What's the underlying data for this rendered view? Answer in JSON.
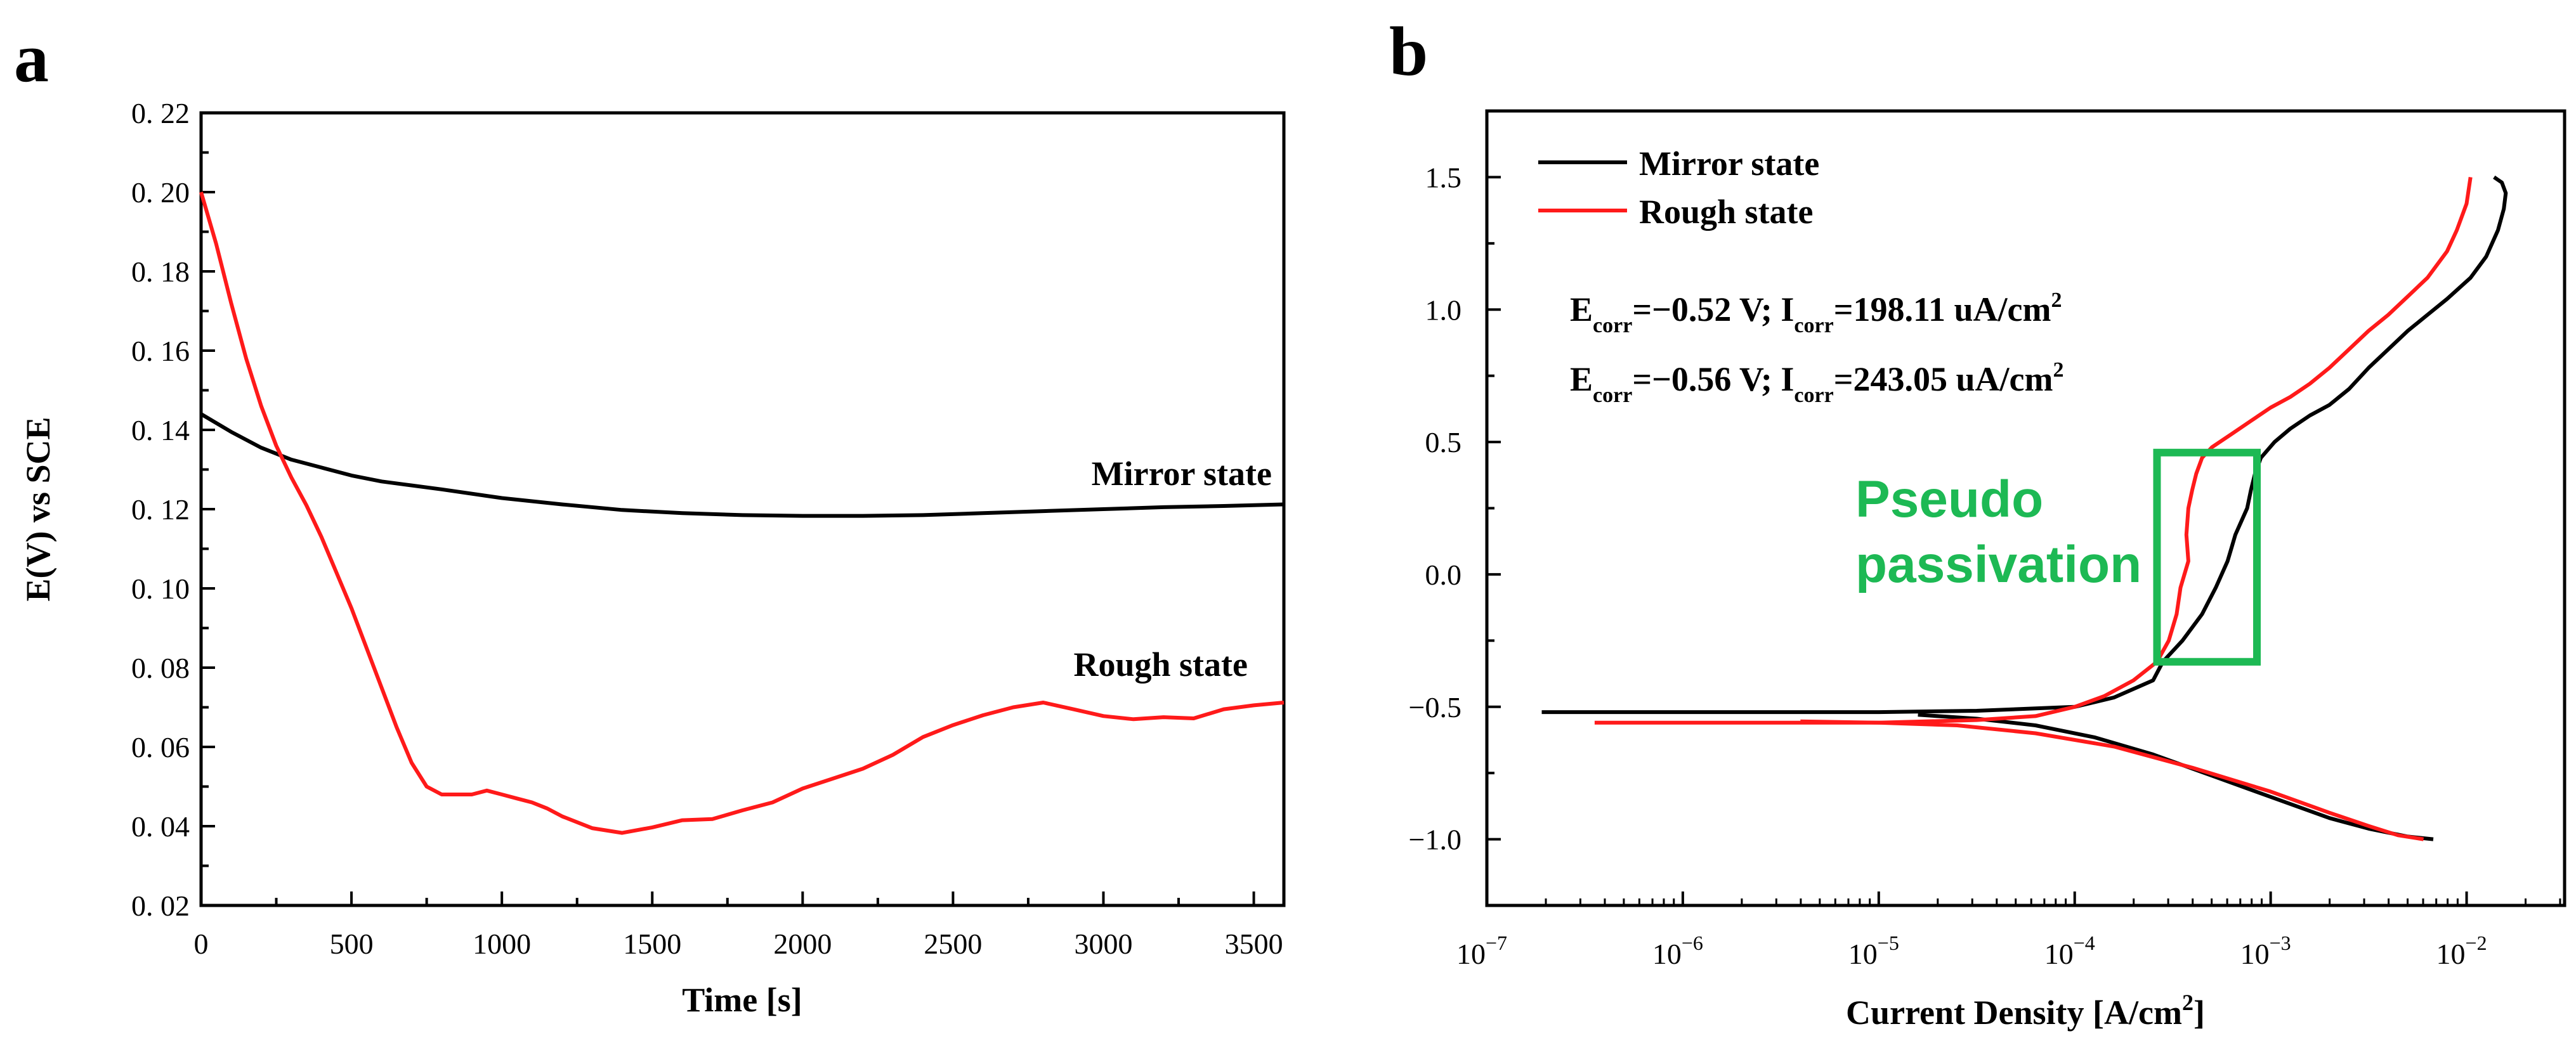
{
  "colors": {
    "mirror": "#000000",
    "rough": "#ff1a1a",
    "highlight": "#1db954"
  },
  "chart_data": [
    {
      "panel": "a",
      "type": "line",
      "title": "",
      "xlabel": "Time [s]",
      "ylabel": "E(V) vs SCE",
      "xlim": [
        0,
        3600
      ],
      "ylim": [
        0.02,
        0.22
      ],
      "xticks": [
        0,
        500,
        1000,
        1500,
        2000,
        2500,
        3000,
        3500
      ],
      "xtick_labels": [
        "0",
        "500",
        "1000",
        "1500",
        "2000",
        "2500",
        "3000",
        "3500"
      ],
      "yticks": [
        0.02,
        0.04,
        0.06,
        0.08,
        0.1,
        0.12,
        0.14,
        0.16,
        0.18,
        0.2,
        0.22
      ],
      "ytick_labels": [
        "0. 02",
        "0. 04",
        "0. 06",
        "0. 08",
        "0. 10",
        "0. 12",
        "0. 14",
        "0. 16",
        "0. 18",
        "0. 20",
        "0. 22"
      ],
      "series": [
        {
          "name": "Mirror state",
          "label": "Mirror state",
          "color": "#000000",
          "x": [
            0,
            100,
            200,
            300,
            400,
            500,
            600,
            800,
            1000,
            1200,
            1400,
            1600,
            1800,
            2000,
            2200,
            2400,
            2600,
            2800,
            3000,
            3200,
            3400,
            3600
          ],
          "y": [
            0.144,
            0.1395,
            0.1355,
            0.1325,
            0.1305,
            0.1285,
            0.127,
            0.125,
            0.1228,
            0.1212,
            0.1198,
            0.119,
            0.1185,
            0.1183,
            0.1183,
            0.1185,
            0.119,
            0.1195,
            0.12,
            0.1205,
            0.1208,
            0.1212
          ]
        },
        {
          "name": "Rough state",
          "label": "Rough state",
          "color": "#ff1a1a",
          "x": [
            0,
            50,
            100,
            150,
            200,
            250,
            300,
            350,
            400,
            450,
            500,
            550,
            600,
            650,
            700,
            750,
            800,
            850,
            900,
            950,
            1000,
            1050,
            1100,
            1150,
            1200,
            1300,
            1400,
            1500,
            1600,
            1700,
            1800,
            1900,
            2000,
            2100,
            2200,
            2300,
            2400,
            2500,
            2600,
            2700,
            2800,
            2900,
            3000,
            3100,
            3200,
            3300,
            3400,
            3500,
            3600
          ],
          "y": [
            0.2,
            0.187,
            0.172,
            0.158,
            0.146,
            0.136,
            0.128,
            0.121,
            0.113,
            0.104,
            0.095,
            0.085,
            0.075,
            0.065,
            0.056,
            0.05,
            0.048,
            0.048,
            0.048,
            0.049,
            0.048,
            0.047,
            0.046,
            0.0445,
            0.0425,
            0.0395,
            0.0383,
            0.0397,
            0.0415,
            0.0418,
            0.044,
            0.046,
            0.0495,
            0.052,
            0.0545,
            0.058,
            0.0625,
            0.0655,
            0.068,
            0.07,
            0.0712,
            0.0695,
            0.0678,
            0.067,
            0.0675,
            0.0672,
            0.0695,
            0.0705,
            0.0712
          ]
        }
      ]
    },
    {
      "panel": "b",
      "type": "line",
      "title": "",
      "xlabel_pre": "Current Density [A/cm",
      "xlabel_sup": "2",
      "xlabel_post": "]",
      "ylabel": "",
      "xscale": "log",
      "xlim_log10": [
        -7,
        -1.5
      ],
      "ylim": [
        -1.25,
        1.75
      ],
      "xtick_base": "10",
      "xtick_exponents": [
        "-7",
        "-6",
        "-5",
        "-4",
        "-3",
        "-2"
      ],
      "yticks": [
        -1.0,
        -0.5,
        0.0,
        0.5,
        1.0,
        1.5
      ],
      "ytick_labels": [
        "−1.0",
        "−0.5",
        "0.0",
        "0.5",
        "1.0",
        "1.5"
      ],
      "legend": {
        "position": "top-left",
        "entries": [
          "Mirror state",
          "Rough state"
        ]
      },
      "annotations": {
        "mirror": {
          "e_label": "E",
          "e_sub": "corr",
          "e_val": "=−0.52 V; I",
          "i_sub": "corr",
          "i_val": "=198.11 uA/cm",
          "i_sup": "2"
        },
        "rough": {
          "e_label": "E",
          "e_sub": "corr",
          "e_val": "=−0.56 V; I",
          "i_sub": "corr",
          "i_val": "=243.05 uA/cm",
          "i_sup": "2"
        },
        "highlight_line1": "Pseudo",
        "highlight_line2": "passivation",
        "highlight_box": {
          "x_log10": [
            -3.58,
            -3.07
          ],
          "y": [
            -0.33,
            0.46
          ]
        }
      },
      "series": [
        {
          "name": "Mirror state",
          "color": "#000000",
          "branches": [
            {
              "log10_i": [
                -6.72,
                -6,
                -5,
                -4.5,
                -4,
                -3.8,
                -3.6,
                -3.55,
                -3.45,
                -3.35,
                -3.28,
                -3.22,
                -3.2,
                -3.18,
                -3.15,
                -3.12,
                -3.1,
                -3.08,
                -3.05,
                -2.98,
                -2.9,
                -2.8,
                -2.7,
                -2.6,
                -2.5,
                -2.4,
                -2.3,
                -2.2,
                -2.1,
                -1.98,
                -1.9,
                -1.84,
                -1.81,
                -1.8,
                -1.82,
                -1.86
              ],
              "e": [
                -0.52,
                -0.52,
                -0.52,
                -0.515,
                -0.5,
                -0.465,
                -0.4,
                -0.33,
                -0.25,
                -0.15,
                -0.05,
                0.05,
                0.1,
                0.15,
                0.2,
                0.25,
                0.32,
                0.38,
                0.44,
                0.5,
                0.55,
                0.6,
                0.64,
                0.7,
                0.78,
                0.85,
                0.92,
                0.98,
                1.04,
                1.12,
                1.2,
                1.3,
                1.38,
                1.44,
                1.48,
                1.5
              ]
            },
            {
              "log10_i": [
                -4.8,
                -4.5,
                -4.2,
                -3.9,
                -3.6,
                -3.3,
                -3.0,
                -2.7,
                -2.5,
                -2.3,
                -2.17
              ],
              "e": [
                -0.53,
                -0.545,
                -0.57,
                -0.615,
                -0.68,
                -0.76,
                -0.84,
                -0.92,
                -0.96,
                -0.99,
                -1.0
              ]
            }
          ]
        },
        {
          "name": "Rough state",
          "color": "#ff1a1a",
          "branches": [
            {
              "log10_i": [
                -6.45,
                -6,
                -5,
                -4.5,
                -4.2,
                -4,
                -3.85,
                -3.7,
                -3.58,
                -3.52,
                -3.48,
                -3.46,
                -3.44,
                -3.42,
                -3.43,
                -3.42,
                -3.4,
                -3.38,
                -3.35,
                -3.3,
                -3.2,
                -3.1,
                -3.0,
                -2.9,
                -2.8,
                -2.7,
                -2.6,
                -2.5,
                -2.4,
                -2.3,
                -2.2,
                -2.1,
                -2.05,
                -2.0,
                -1.98
              ],
              "e": [
                -0.56,
                -0.56,
                -0.56,
                -0.55,
                -0.535,
                -0.5,
                -0.46,
                -0.4,
                -0.33,
                -0.25,
                -0.15,
                -0.05,
                0.0,
                0.05,
                0.15,
                0.25,
                0.32,
                0.38,
                0.44,
                0.48,
                0.53,
                0.58,
                0.63,
                0.67,
                0.72,
                0.78,
                0.85,
                0.92,
                0.98,
                1.05,
                1.12,
                1.22,
                1.3,
                1.4,
                1.5
              ]
            },
            {
              "log10_i": [
                -5.4,
                -5,
                -4.6,
                -4.2,
                -3.8,
                -3.4,
                -3.0,
                -2.7,
                -2.5,
                -2.35,
                -2.22
              ],
              "e": [
                -0.555,
                -0.56,
                -0.57,
                -0.6,
                -0.65,
                -0.73,
                -0.82,
                -0.9,
                -0.95,
                -0.985,
                -1.0
              ]
            }
          ]
        }
      ]
    }
  ]
}
